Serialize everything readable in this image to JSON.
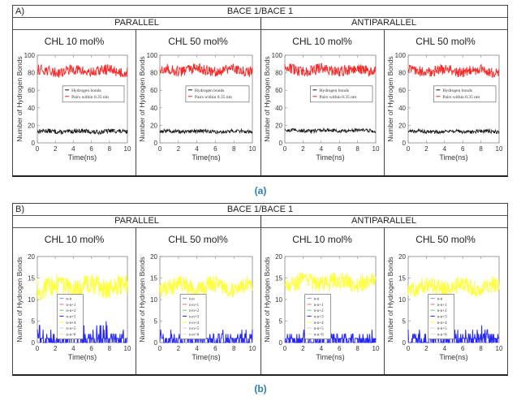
{
  "panels": [
    {
      "letter": "A)",
      "title": "BACE 1/BACE 1",
      "groups": [
        "PARALLEL",
        "ANTIPARALLEL"
      ],
      "cells": [
        "CHL 10 mol%",
        "CHL 50 mol%",
        "CHL 10 mol%",
        "CHL 50 mol%"
      ],
      "caption": "(a)"
    },
    {
      "letter": "B)",
      "title": "BACE 1/BACE 1",
      "groups": [
        "PARALLEL",
        "ANTIPARALLEL"
      ],
      "cells": [
        "CHL 10 mol%",
        "CHL 50 mol%",
        "CHL 10 mol%",
        "CHL 50 mol%"
      ],
      "caption": "(b)"
    }
  ],
  "chart_data": [
    {
      "type": "line",
      "panel": "A",
      "group": "PARALLEL",
      "condition": "CHL 10 mol%",
      "title": "CHL 10 mol%",
      "xlabel": "Time(ns)",
      "ylabel": "Number of Hydrogen Bonds",
      "xlim": [
        0,
        10
      ],
      "ylim": [
        0,
        100
      ],
      "xticks": [
        0,
        2,
        4,
        6,
        8,
        10
      ],
      "yticks": [
        0,
        20,
        40,
        60,
        80,
        100
      ],
      "legend_position": "center-right",
      "series": [
        {
          "name": "Hydrogen bonds",
          "color": "#111111",
          "mean": 13,
          "spread": 2.5
        },
        {
          "name": "Pairs within 0.35 nm",
          "color": "#ff1a1a",
          "mean": 82,
          "spread": 6
        }
      ]
    },
    {
      "type": "line",
      "panel": "A",
      "group": "PARALLEL",
      "condition": "CHL 50 mol%",
      "title": "CHL 50 mol%",
      "xlabel": "Time(ns)",
      "ylabel": "Number of Hydrogen Bonds",
      "xlim": [
        0,
        10
      ],
      "ylim": [
        0,
        100
      ],
      "xticks": [
        0,
        2,
        4,
        6,
        8,
        10
      ],
      "yticks": [
        0,
        20,
        40,
        60,
        80,
        100
      ],
      "legend_position": "center-right",
      "series": [
        {
          "name": "Hydrogen bonds",
          "color": "#111111",
          "mean": 13,
          "spread": 2
        },
        {
          "name": "Pairs within 0.35 nm",
          "color": "#ff1a1a",
          "mean": 83,
          "spread": 6
        }
      ]
    },
    {
      "type": "line",
      "panel": "A",
      "group": "ANTIPARALLEL",
      "condition": "CHL 10 mol%",
      "title": "CHL 10 mol%",
      "xlabel": "Time(ns)",
      "ylabel": "Number of Hydrogen Bonds",
      "xlim": [
        0,
        10
      ],
      "ylim": [
        0,
        100
      ],
      "xticks": [
        0,
        2,
        4,
        6,
        8,
        10
      ],
      "yticks": [
        0,
        20,
        40,
        60,
        80,
        100
      ],
      "legend_position": "center-right",
      "series": [
        {
          "name": "Hydrogen bonds",
          "color": "#111111",
          "mean": 14,
          "spread": 2
        },
        {
          "name": "Pairs within 0.35 nm",
          "color": "#ff1a1a",
          "mean": 83,
          "spread": 6
        }
      ]
    },
    {
      "type": "line",
      "panel": "A",
      "group": "ANTIPARALLEL",
      "condition": "CHL 50 mol%",
      "title": "CHL 50 mol%",
      "xlabel": "Time(ns)",
      "ylabel": "Number of Hydrogen Bonds",
      "xlim": [
        0,
        10
      ],
      "ylim": [
        0,
        100
      ],
      "xticks": [
        0,
        2,
        4,
        6,
        8,
        10
      ],
      "yticks": [
        0,
        20,
        40,
        60,
        80,
        100
      ],
      "legend_position": "center-right",
      "series": [
        {
          "name": "Hydrogen bonds",
          "color": "#111111",
          "mean": 13,
          "spread": 2
        },
        {
          "name": "Pairs within 0.35 nm",
          "color": "#ff1a1a",
          "mean": 82,
          "spread": 6
        }
      ]
    },
    {
      "type": "line",
      "panel": "B",
      "group": "PARALLEL",
      "condition": "CHL 10 mol%",
      "title": "CHL 10 mol%",
      "xlabel": "Time(ns)",
      "ylabel": "Number of Hydrogen Bonds",
      "xlim": [
        0,
        10
      ],
      "ylim": [
        0,
        20
      ],
      "xticks": [
        0,
        2,
        4,
        6,
        8,
        10
      ],
      "yticks": [
        0,
        5,
        10,
        15,
        20
      ],
      "legend_position": "center-left",
      "series": [
        {
          "name": "n-n",
          "color": "#8888ff",
          "mean": 0,
          "spread": 0
        },
        {
          "name": "n-n+1",
          "color": "#ff6666",
          "mean": 0,
          "spread": 0
        },
        {
          "name": "n-n+2",
          "color": "#66cc66",
          "mean": 0,
          "spread": 0
        },
        {
          "name": "n-n+3",
          "color": "#1a1aff",
          "mean": 1,
          "spread": 1.5
        },
        {
          "name": "n-n+4",
          "color": "#ffff33",
          "mean": 13,
          "spread": 2.5
        },
        {
          "name": "n-n+5",
          "color": "#ccccff",
          "mean": 0,
          "spread": 0
        },
        {
          "name": "n-n>6",
          "color": "#ffddaa",
          "mean": 0,
          "spread": 0
        }
      ]
    },
    {
      "type": "line",
      "panel": "B",
      "group": "PARALLEL",
      "condition": "CHL 50 mol%",
      "title": "CHL 50 mol%",
      "xlabel": "Time(ns)",
      "ylabel": "Number of Hydrogen Bonds",
      "xlim": [
        0,
        10
      ],
      "ylim": [
        0,
        20
      ],
      "xticks": [
        0,
        2,
        4,
        6,
        8,
        10
      ],
      "yticks": [
        0,
        5,
        10,
        15,
        20
      ],
      "legend_position": "center-left",
      "series": [
        {
          "name": "n-n",
          "color": "#8888ff",
          "mean": 0,
          "spread": 0
        },
        {
          "name": "n-n+1",
          "color": "#ff6666",
          "mean": 0,
          "spread": 0
        },
        {
          "name": "n-n+2",
          "color": "#66cc66",
          "mean": 0,
          "spread": 0
        },
        {
          "name": "n-n+3",
          "color": "#1a1aff",
          "mean": 0.8,
          "spread": 1.2
        },
        {
          "name": "n-n+4",
          "color": "#ffff33",
          "mean": 13,
          "spread": 2
        },
        {
          "name": "n-n+5",
          "color": "#ccccff",
          "mean": 0,
          "spread": 0
        },
        {
          "name": "n-n>6",
          "color": "#ffddaa",
          "mean": 0,
          "spread": 0
        }
      ]
    },
    {
      "type": "line",
      "panel": "B",
      "group": "ANTIPARALLEL",
      "condition": "CHL 10 mol%",
      "title": "CHL 10 mol%",
      "xlabel": "Time(ns)",
      "ylabel": "Number of Hydrogen Bonds",
      "xlim": [
        0,
        10
      ],
      "ylim": [
        0,
        20
      ],
      "xticks": [
        0,
        2,
        4,
        6,
        8,
        10
      ],
      "yticks": [
        0,
        5,
        10,
        15,
        20
      ],
      "legend_position": "center-left",
      "series": [
        {
          "name": "n-n",
          "color": "#8888ff",
          "mean": 0,
          "spread": 0
        },
        {
          "name": "n-n+1",
          "color": "#ff6666",
          "mean": 0,
          "spread": 0
        },
        {
          "name": "n-n+2",
          "color": "#66cc66",
          "mean": 0,
          "spread": 0
        },
        {
          "name": "n-n+3",
          "color": "#1a1aff",
          "mean": 0.6,
          "spread": 1
        },
        {
          "name": "n-n+4",
          "color": "#ffff33",
          "mean": 14,
          "spread": 2
        },
        {
          "name": "n-n+5",
          "color": "#ccccff",
          "mean": 0,
          "spread": 0
        },
        {
          "name": "n-n>6",
          "color": "#ffddaa",
          "mean": 0,
          "spread": 0
        }
      ]
    },
    {
      "type": "line",
      "panel": "B",
      "group": "ANTIPARALLEL",
      "condition": "CHL 50 mol%",
      "title": "CHL 50 mol%",
      "xlabel": "Time(ns)",
      "ylabel": "Number of Hydrogen Bonds",
      "xlim": [
        0,
        10
      ],
      "ylim": [
        0,
        20
      ],
      "xticks": [
        0,
        2,
        4,
        6,
        8,
        10
      ],
      "yticks": [
        0,
        5,
        10,
        15,
        20
      ],
      "legend_position": "center-left",
      "series": [
        {
          "name": "n-n",
          "color": "#8888ff",
          "mean": 0,
          "spread": 0
        },
        {
          "name": "n-n+1",
          "color": "#ff6666",
          "mean": 0,
          "spread": 0
        },
        {
          "name": "n-n+2",
          "color": "#66cc66",
          "mean": 0,
          "spread": 0
        },
        {
          "name": "n-n+3",
          "color": "#1a1aff",
          "mean": 0.7,
          "spread": 1.2
        },
        {
          "name": "n-n+4",
          "color": "#ffff33",
          "mean": 13,
          "spread": 2
        },
        {
          "name": "n-n+5",
          "color": "#ccccff",
          "mean": 0,
          "spread": 0
        },
        {
          "name": "n-n>6",
          "color": "#ffddaa",
          "mean": 0,
          "spread": 0
        }
      ]
    }
  ]
}
